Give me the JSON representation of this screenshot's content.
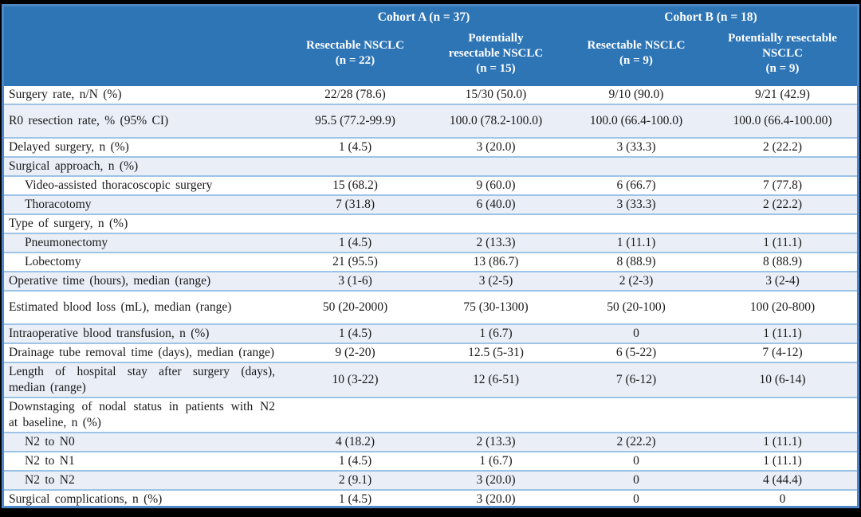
{
  "colors": {
    "page_bg": "#000000",
    "header_bg": "#2E75B6",
    "header_text": "#FFFFFF",
    "row_shade": "#E9EEF7",
    "row_border": "#9DC3E6",
    "outer_border": "#4E86C6"
  },
  "header": {
    "corner": "",
    "cohort_a": "Cohort A (n = 37)",
    "cohort_b": "Cohort B (n = 18)",
    "columns": [
      "Resectable NSCLC\n(n = 22)",
      "Potentially\nresectable NSCLC\n(n = 15)",
      "Resectable NSCLC\n(n = 9)",
      "Potentially resectable\nNSCLC\n(n = 9)"
    ]
  },
  "table": {
    "rows": [
      {
        "label": "Surgery rate, n/N (%)",
        "indent": false,
        "tall": false,
        "values": [
          "22/28 (78.6)",
          "15/30 (50.0)",
          "9/10 (90.0)",
          "9/21 (42.9)"
        ]
      },
      {
        "label": "R0 resection rate, % (95% CI)",
        "indent": false,
        "tall": true,
        "values": [
          "95.5 (77.2-99.9)",
          "100.0 (78.2-100.0)",
          "100.0 (66.4-100.0)",
          "100.0 (66.4-100.00)"
        ]
      },
      {
        "label": "Delayed surgery, n (%)",
        "indent": false,
        "tall": false,
        "values": [
          "1 (4.5)",
          "3 (20.0)",
          "3 (33.3)",
          "2 (22.2)"
        ]
      },
      {
        "label": "Surgical approach, n (%)",
        "indent": false,
        "tall": false,
        "values": [
          "",
          "",
          "",
          ""
        ]
      },
      {
        "label": "Video-assisted thoracoscopic surgery",
        "indent": true,
        "tall": false,
        "values": [
          "15 (68.2)",
          "9 (60.0)",
          "6 (66.7)",
          "7 (77.8)"
        ]
      },
      {
        "label": "Thoracotomy",
        "indent": true,
        "tall": false,
        "values": [
          "7 (31.8)",
          "6 (40.0)",
          "3 (33.3)",
          "2 (22.2)"
        ]
      },
      {
        "label": "Type of surgery, n (%)",
        "indent": false,
        "tall": false,
        "values": [
          "",
          "",
          "",
          ""
        ]
      },
      {
        "label": "Pneumonectomy",
        "indent": true,
        "tall": false,
        "values": [
          "1 (4.5)",
          "2 (13.3)",
          "1 (11.1)",
          "1 (11.1)"
        ]
      },
      {
        "label": "Lobectomy",
        "indent": true,
        "tall": false,
        "values": [
          "21 (95.5)",
          "13 (86.7)",
          "8 (88.9)",
          "8 (88.9)"
        ]
      },
      {
        "label": "Operative time (hours), median (range)",
        "indent": false,
        "tall": false,
        "values": [
          "3 (1-6)",
          "3 (2-5)",
          "2 (2-3)",
          "3 (2-4)"
        ]
      },
      {
        "label": "Estimated blood loss (mL), median (range)",
        "indent": false,
        "tall": true,
        "values": [
          "50 (20-2000)",
          "75 (30-1300)",
          "50 (20-100)",
          "100 (20-800)"
        ]
      },
      {
        "label": "Intraoperative blood transfusion, n (%)",
        "indent": false,
        "tall": false,
        "values": [
          "1 (4.5)",
          "1 (6.7)",
          "0",
          "1 (11.1)"
        ]
      },
      {
        "label": "Drainage tube removal time (days), median (range)",
        "indent": false,
        "tall": false,
        "values": [
          "9 (2-20)",
          "12.5 (5-31)",
          "6 (5-22)",
          "7 (4-12)"
        ]
      },
      {
        "label": "Length of hospital stay after surgery (days), median (range)",
        "indent": false,
        "tall": false,
        "values": [
          "10 (3-22)",
          "12 (6-51)",
          "7 (6-12)",
          "10 (6-14)"
        ]
      },
      {
        "label": "Downstaging of nodal status in patients with N2 at baseline, n (%)",
        "indent": false,
        "tall": false,
        "values": [
          "",
          "",
          "",
          ""
        ]
      },
      {
        "label": "N2 to N0",
        "indent": true,
        "tall": false,
        "values": [
          "4 (18.2)",
          "2 (13.3)",
          "2 (22.2)",
          "1 (11.1)"
        ]
      },
      {
        "label": "N2 to N1",
        "indent": true,
        "tall": false,
        "values": [
          "1 (4.5)",
          "1 (6.7)",
          "0",
          "1 (11.1)"
        ]
      },
      {
        "label": "N2 to N2",
        "indent": true,
        "tall": false,
        "values": [
          "2 (9.1)",
          "3 (20.0)",
          "0",
          "4 (44.4)"
        ]
      },
      {
        "label": "Surgical complications, n (%)",
        "indent": false,
        "tall": false,
        "values": [
          "1 (4.5)",
          "3 (20.0)",
          "0",
          "0"
        ]
      }
    ]
  }
}
